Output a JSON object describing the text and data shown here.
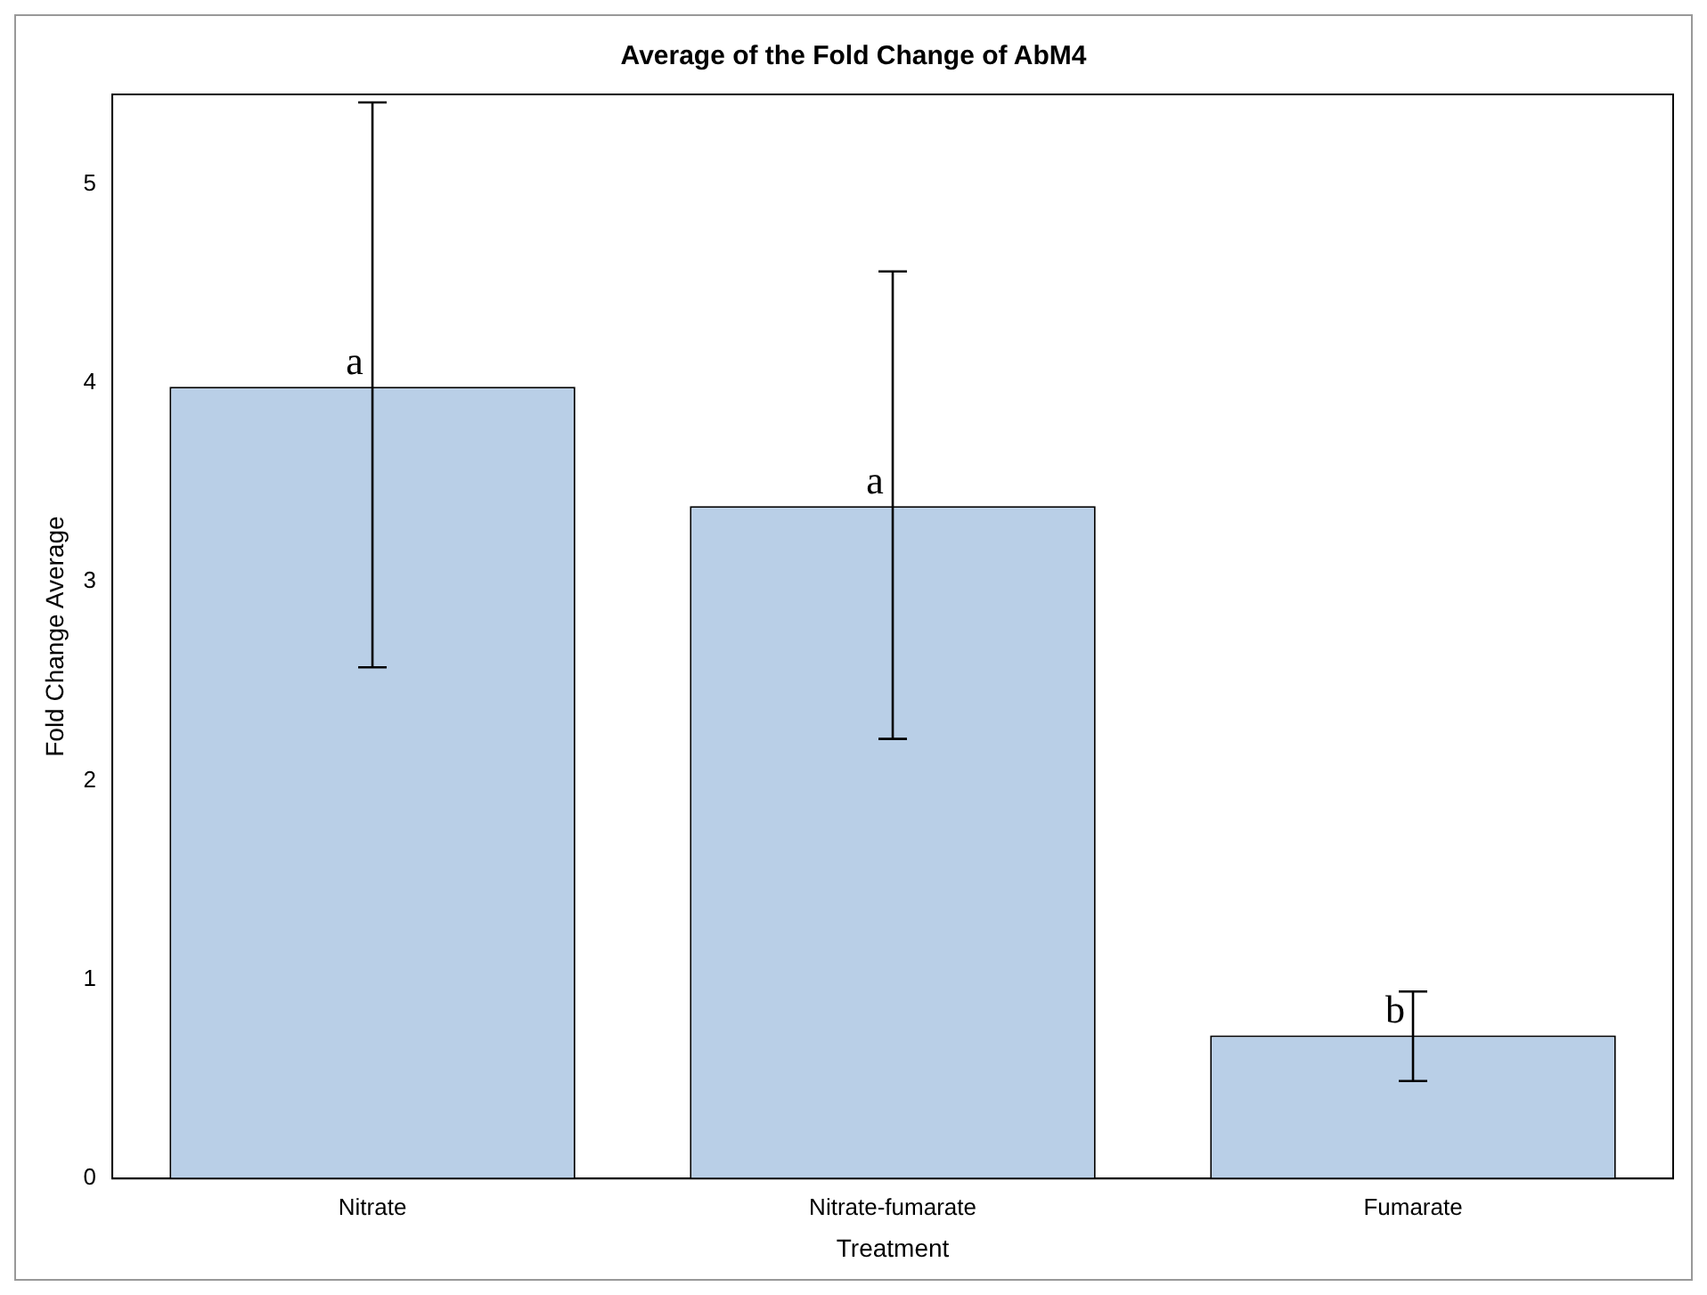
{
  "chart_data": {
    "type": "bar",
    "title": "Average of the Fold Change of AbM4",
    "xlabel": "Treatment",
    "ylabel": "Fold Change Average",
    "categories": [
      "Nitrate",
      "Nitrate-fumarate",
      "Fumarate"
    ],
    "values": [
      3.98,
      3.38,
      0.72
    ],
    "errors": [
      [
        2.57,
        5.41
      ],
      [
        2.21,
        4.56
      ],
      [
        0.49,
        0.94
      ]
    ],
    "color": "#b9cfe7",
    "ylim": [
      0,
      5.45
    ],
    "yticks": [
      0,
      1,
      2,
      3,
      4,
      5
    ],
    "grid": false,
    "legend": false,
    "annotations": [
      {
        "text": "a",
        "x": "Nitrate",
        "y": 3.98
      },
      {
        "text": "a",
        "x": "Nitrate-fumarate",
        "y": 3.38
      },
      {
        "text": "b",
        "x": "Fumarate",
        "y": 0.72
      }
    ]
  }
}
